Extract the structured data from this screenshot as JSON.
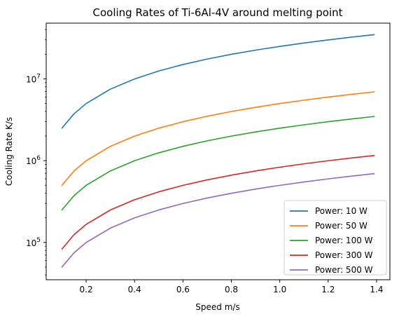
{
  "chart_data": {
    "type": "line",
    "title": "Cooling Rates of Ti-6Al-4V around melting point",
    "xlabel": "Speed m/s",
    "ylabel": "Cooling Rate K/s",
    "xlim": [
      0.035,
      1.455
    ],
    "ylim": [
      35000,
      48000000
    ],
    "yscale": "log",
    "x_ticks": [
      0.2,
      0.4,
      0.6,
      0.8,
      1.0,
      1.2,
      1.4
    ],
    "x_tick_labels": [
      "0.2",
      "0.4",
      "0.6",
      "0.8",
      "1.0",
      "1.2",
      "1.4"
    ],
    "y_major_ticks": [
      100000,
      1000000,
      10000000
    ],
    "y_major_tick_bases": [
      "10",
      "10",
      "10"
    ],
    "y_major_tick_exponents": [
      "5",
      "6",
      "7"
    ],
    "grid": false,
    "legend_position": "lower-right",
    "x": [
      0.1,
      0.15,
      0.2,
      0.3,
      0.4,
      0.5,
      0.6,
      0.7,
      0.8,
      0.9,
      1.0,
      1.1,
      1.2,
      1.3,
      1.39
    ],
    "series": [
      {
        "name": "Power: 10 W",
        "color": "#1f77b4",
        "values": [
          2500000,
          3740000,
          4990000,
          7480000,
          9980000,
          12480000,
          14970000,
          17460000,
          19960000,
          22460000,
          24950000,
          27450000,
          29940000,
          32440000,
          34680000
        ]
      },
      {
        "name": "Power: 50 W",
        "color": "#ff7f0e",
        "values": [
          500000,
          748000,
          998000,
          1496000,
          1996000,
          2496000,
          2994000,
          3492000,
          3992000,
          4492000,
          4990000,
          5490000,
          5988000,
          6488000,
          6940000
        ]
      },
      {
        "name": "Power: 100 W",
        "color": "#2ca02c",
        "values": [
          250000,
          374000,
          499000,
          748000,
          998000,
          1248000,
          1497000,
          1746000,
          1996000,
          2246000,
          2495000,
          2745000,
          2994000,
          3244000,
          3470000
        ]
      },
      {
        "name": "Power: 300 W",
        "color": "#d62728",
        "values": [
          83000,
          124700,
          166300,
          249400,
          332700,
          416000,
          499000,
          582000,
          665300,
          748700,
          831700,
          915000,
          998000,
          1081300,
          1156700
        ]
      },
      {
        "name": "Power: 500 W",
        "color": "#9467bd",
        "values": [
          50000,
          74800,
          99800,
          149600,
          199600,
          249600,
          299400,
          349200,
          399200,
          449200,
          499000,
          549000,
          598800,
          648800,
          694000
        ]
      }
    ]
  }
}
